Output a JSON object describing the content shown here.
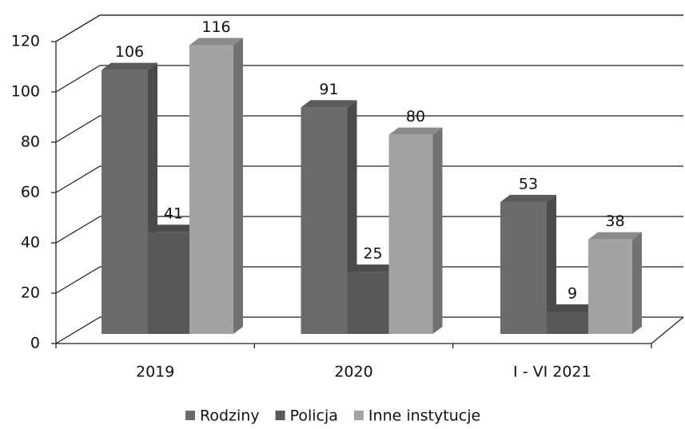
{
  "chart_data": {
    "type": "bar3d",
    "categories": [
      "2019",
      "2020",
      "I - VI 2021"
    ],
    "series": [
      {
        "name": "Rodziny",
        "color": "#6b6b6b",
        "values": [
          106,
          91,
          53
        ]
      },
      {
        "name": "Policja",
        "color": "#585858",
        "values": [
          41,
          25,
          9
        ]
      },
      {
        "name": "Inne instytucje",
        "color": "#a3a3a3",
        "values": [
          116,
          80,
          38
        ]
      }
    ],
    "ylim": [
      0,
      120
    ],
    "yticks": [
      0,
      20,
      40,
      60,
      80,
      100,
      120
    ],
    "grid": true,
    "legend": "bottom"
  }
}
